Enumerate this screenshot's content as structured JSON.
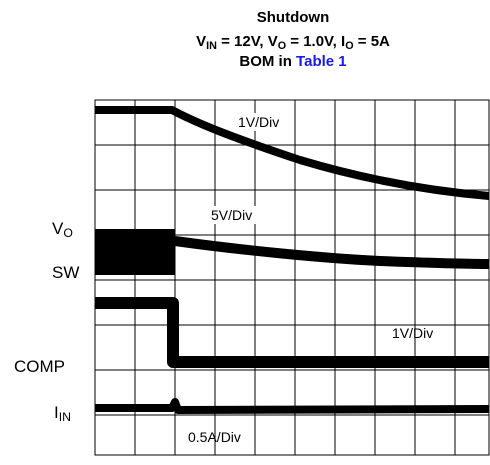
{
  "chart_data": {
    "type": "scope",
    "title": "Shutdown",
    "subtitle": [
      {
        "text": "V"
      },
      {
        "text": "IN",
        "sub": true
      },
      {
        "text": " = 12V, V"
      },
      {
        "text": "O",
        "sub": true
      },
      {
        "text": " = 1.0V, I"
      },
      {
        "text": "O",
        "sub": true
      },
      {
        "text": " = 5A"
      }
    ],
    "bom": [
      {
        "text": "BOM in "
      },
      {
        "text": "Table 1",
        "link": true
      }
    ],
    "trace_labels": [
      [
        {
          "text": "V"
        },
        {
          "text": "O",
          "sub": true
        }
      ],
      [
        {
          "text": "SW"
        }
      ],
      [
        {
          "text": "COMP"
        }
      ],
      [
        {
          "text": "I"
        },
        {
          "text": "IN",
          "sub": true
        }
      ]
    ],
    "scale_labels": [
      "1V/Div",
      "5V/Div",
      "1V/Div",
      "0.5A/Div"
    ]
  }
}
